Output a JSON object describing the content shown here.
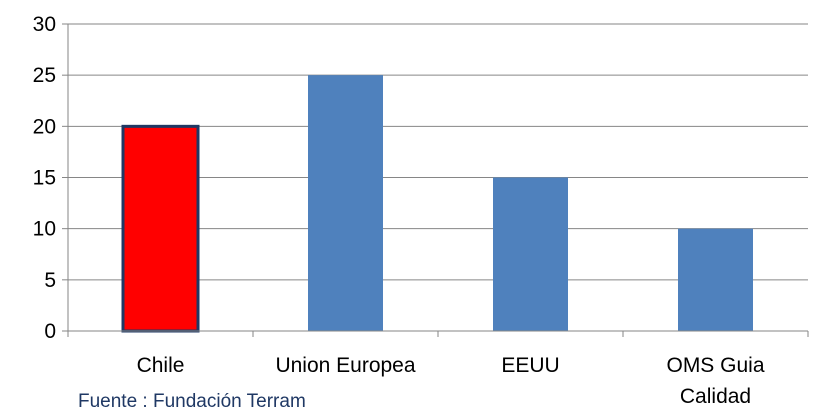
{
  "chart_data": {
    "type": "bar",
    "categories": [
      "Chile",
      "Union Europea",
      "EEUU",
      "OMS Guia Calidad"
    ],
    "category_lines": [
      [
        "Chile"
      ],
      [
        "Union Europea"
      ],
      [
        "EEUU"
      ],
      [
        "OMS Guia",
        "Calidad"
      ]
    ],
    "values": [
      20,
      25,
      15,
      10
    ],
    "ylim": [
      0,
      30
    ],
    "yticks": [
      0,
      5,
      10,
      15,
      20,
      25,
      30
    ],
    "grid": true,
    "colors": {
      "highlight": "#ff0000",
      "highlight_border": "#1f3864",
      "bar": "#4f81bd",
      "grid": "#868686",
      "axis": "#868686"
    },
    "highlight_index": 0
  },
  "source_note": "Fuente : Fundación Terram"
}
